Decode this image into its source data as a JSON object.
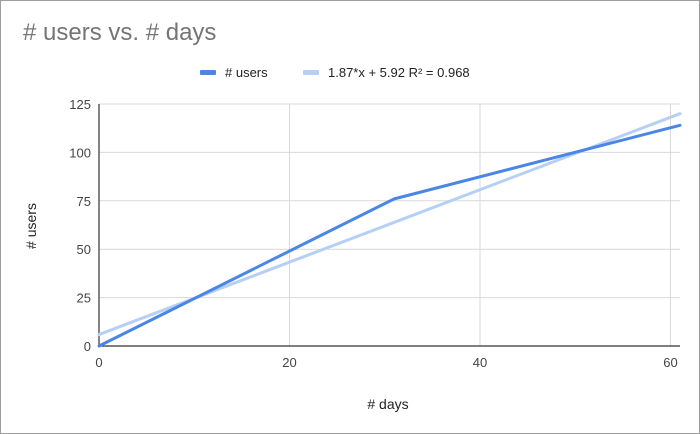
{
  "chart_data": {
    "type": "line",
    "title": "# users vs. # days",
    "xlabel": "# days",
    "ylabel": "# users",
    "xlim": [
      0,
      61
    ],
    "ylim": [
      0,
      125
    ],
    "xticks": [
      0,
      20,
      40,
      60
    ],
    "yticks": [
      0,
      25,
      50,
      75,
      100,
      125
    ],
    "grid": true,
    "legend_position": "top",
    "series": [
      {
        "name": "# users",
        "color": "#4a86e8",
        "x": [
          0,
          31,
          61
        ],
        "y": [
          0,
          76,
          114
        ]
      }
    ],
    "trendline": {
      "label": "1.87*x + 5.92 R² = 0.968",
      "slope": 1.87,
      "intercept": 5.92,
      "r2": 0.968,
      "color": "#b6cff5"
    }
  }
}
